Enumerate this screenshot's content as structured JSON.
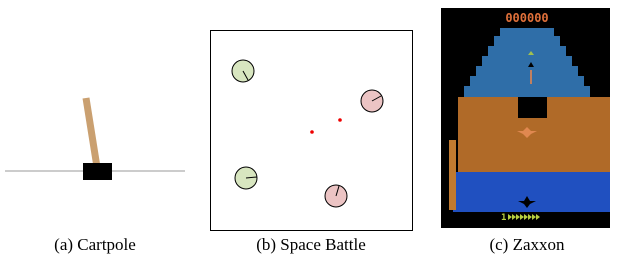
{
  "panels": [
    {
      "caption": "(a) Cartpole"
    },
    {
      "caption": "(b) Space Battle"
    },
    {
      "caption": "(c) Zaxxon",
      "score": "000000",
      "lives": "1"
    }
  ]
}
